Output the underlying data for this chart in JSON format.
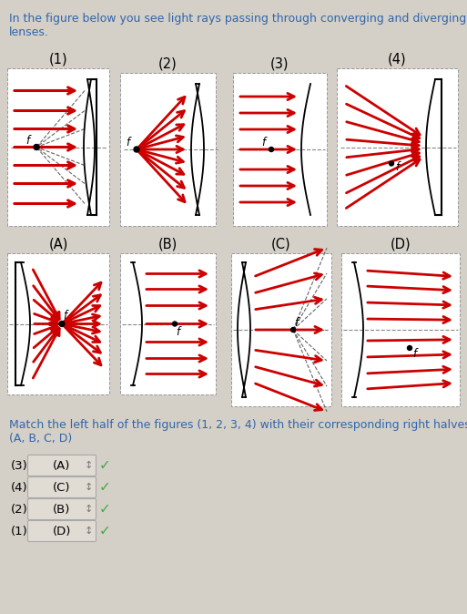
{
  "bg_color": "#d4cfc7",
  "panel_bg": "#ffffff",
  "arrow_color": "#cc0000",
  "text_color": "#000000",
  "title_text": "In the figure below you see light rays passing through converging and diverging\nlenses.",
  "match_text": "Match the left half of the figures (1, 2, 3, 4) with their corresponding right halves\n(A, B, C, D)",
  "answers": [
    {
      "left": "(3)",
      "right": "(A)"
    },
    {
      "left": "(4)",
      "right": "(C)"
    },
    {
      "left": "(2)",
      "right": "(B)"
    },
    {
      "left": "(1)",
      "right": "(D)"
    }
  ],
  "fig_width": 5.13,
  "fig_height": 6.74
}
